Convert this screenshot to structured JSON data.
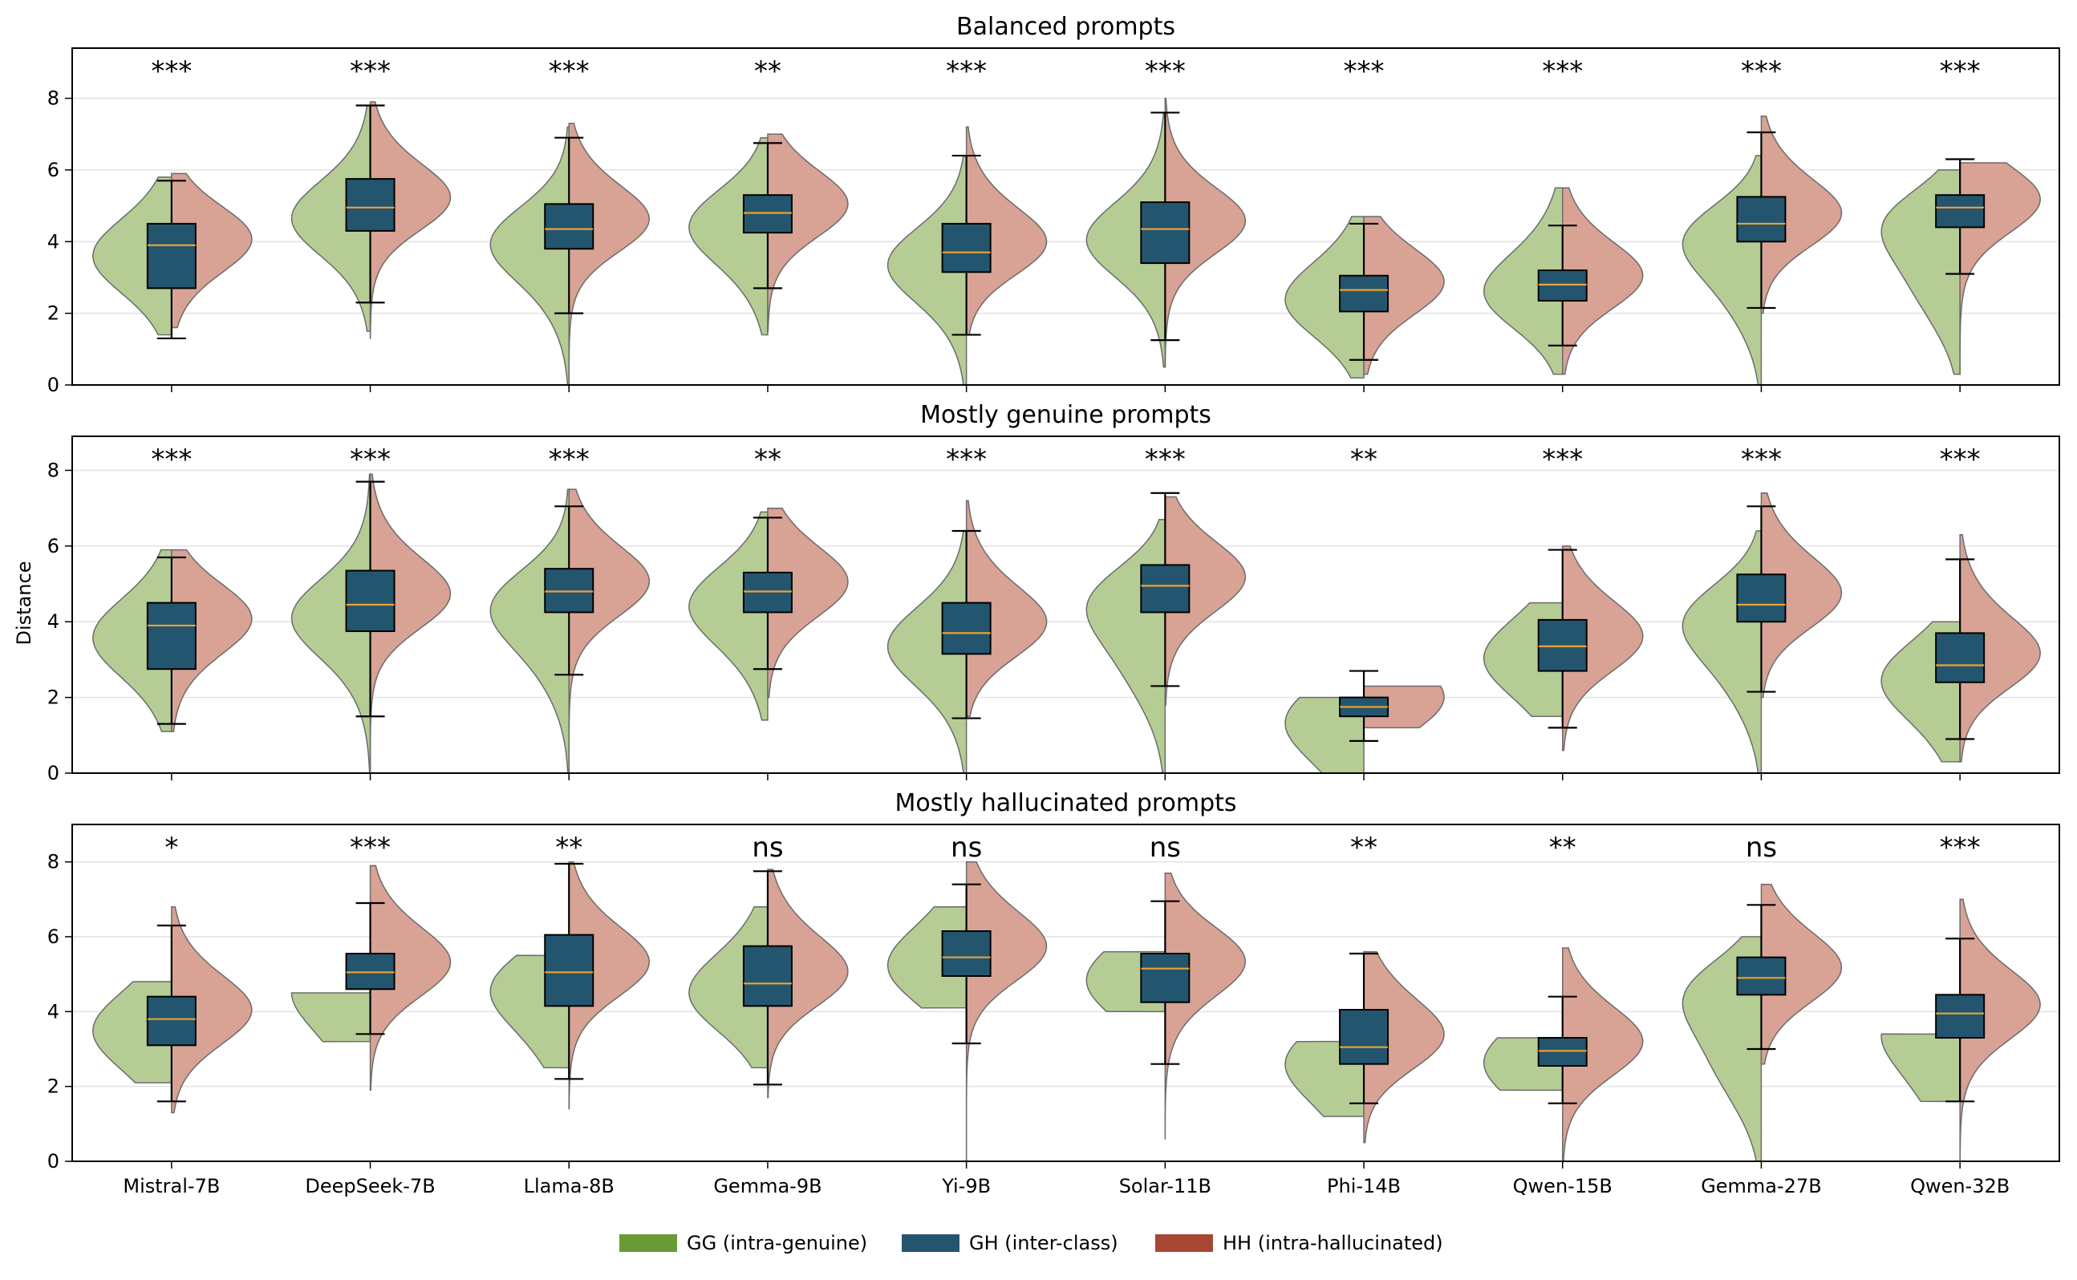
{
  "ylabel": "Distance",
  "colors": {
    "GG": "#b5cd95",
    "GH": "#23566e",
    "HH": "#d8a295",
    "median": "#f0a030"
  },
  "legend": [
    {
      "key": "GG",
      "label": "GG (intra-genuine)",
      "color": "#6a9a35"
    },
    {
      "key": "GH",
      "label": "GH (inter-class)",
      "color": "#23566e"
    },
    {
      "key": "HH",
      "label": "HH (intra-hallucinated)",
      "color": "#a84734"
    }
  ],
  "chart_data": [
    {
      "type": "violin+box",
      "title": "Balanced prompts",
      "ylim": [
        0,
        9.4
      ],
      "yticks": [
        0,
        2,
        4,
        6,
        8
      ],
      "categories": [
        "Mistral-7B",
        "DeepSeek-7B",
        "Llama-8B",
        "Gemma-9B",
        "Yi-9B",
        "Solar-11B",
        "Phi-14B",
        "Qwen-15B",
        "Gemma-27B",
        "Qwen-32B"
      ],
      "significance": [
        "***",
        "***",
        "***",
        "**",
        "***",
        "***",
        "***",
        "***",
        "***",
        "***"
      ],
      "gh_box": [
        {
          "min": 1.3,
          "q1": 2.7,
          "median": 3.9,
          "q3": 4.5,
          "max": 5.7
        },
        {
          "min": 2.3,
          "q1": 4.3,
          "median": 4.95,
          "q3": 5.75,
          "max": 7.8
        },
        {
          "min": 2.0,
          "q1": 3.8,
          "median": 4.35,
          "q3": 5.05,
          "max": 6.9
        },
        {
          "min": 2.7,
          "q1": 4.25,
          "median": 4.8,
          "q3": 5.3,
          "max": 6.75
        },
        {
          "min": 1.4,
          "q1": 3.15,
          "median": 3.7,
          "q3": 4.5,
          "max": 6.4
        },
        {
          "min": 1.25,
          "q1": 3.4,
          "median": 4.35,
          "q3": 5.1,
          "max": 7.6
        },
        {
          "min": 0.7,
          "q1": 2.05,
          "median": 2.65,
          "q3": 3.05,
          "max": 4.5
        },
        {
          "min": 1.1,
          "q1": 2.35,
          "median": 2.8,
          "q3": 3.2,
          "max": 4.45
        },
        {
          "min": 2.15,
          "q1": 4.0,
          "median": 4.5,
          "q3": 5.25,
          "max": 7.05
        },
        {
          "min": 3.1,
          "q1": 4.4,
          "median": 4.95,
          "q3": 5.3,
          "max": 6.3
        }
      ],
      "gg_range": [
        [
          1.4,
          5.8
        ],
        [
          1.5,
          7.8
        ],
        [
          0.0,
          7.2
        ],
        [
          1.4,
          6.9
        ],
        [
          0.0,
          6.4
        ],
        [
          0.5,
          7.6
        ],
        [
          0.2,
          4.7
        ],
        [
          0.3,
          5.5
        ],
        [
          0.0,
          6.4
        ],
        [
          0.3,
          6.0
        ]
      ],
      "hh_range": [
        [
          1.6,
          5.9
        ],
        [
          1.3,
          7.9
        ],
        [
          0.0,
          7.3
        ],
        [
          1.5,
          7.0
        ],
        [
          1.4,
          7.2
        ],
        [
          0.5,
          8.0
        ],
        [
          0.3,
          4.7
        ],
        [
          0.3,
          5.5
        ],
        [
          2.0,
          7.5
        ],
        [
          0.3,
          6.2
        ]
      ]
    },
    {
      "type": "violin+box",
      "title": "Mostly genuine prompts",
      "ylim": [
        0,
        8.9
      ],
      "yticks": [
        0,
        2,
        4,
        6,
        8
      ],
      "categories": [
        "Mistral-7B",
        "DeepSeek-7B",
        "Llama-8B",
        "Gemma-9B",
        "Yi-9B",
        "Solar-11B",
        "Phi-14B",
        "Qwen-15B",
        "Gemma-27B",
        "Qwen-32B"
      ],
      "significance": [
        "***",
        "***",
        "***",
        "**",
        "***",
        "***",
        "**",
        "***",
        "***",
        "***"
      ],
      "gh_box": [
        {
          "min": 1.3,
          "q1": 2.75,
          "median": 3.9,
          "q3": 4.5,
          "max": 5.7
        },
        {
          "min": 1.5,
          "q1": 3.75,
          "median": 4.45,
          "q3": 5.35,
          "max": 7.7
        },
        {
          "min": 2.6,
          "q1": 4.25,
          "median": 4.8,
          "q3": 5.4,
          "max": 7.05
        },
        {
          "min": 2.75,
          "q1": 4.25,
          "median": 4.8,
          "q3": 5.3,
          "max": 6.75
        },
        {
          "min": 1.45,
          "q1": 3.15,
          "median": 3.7,
          "q3": 4.5,
          "max": 6.4
        },
        {
          "min": 2.3,
          "q1": 4.25,
          "median": 4.95,
          "q3": 5.5,
          "max": 7.4
        },
        {
          "min": 0.85,
          "q1": 1.5,
          "median": 1.75,
          "q3": 2.0,
          "max": 2.7
        },
        {
          "min": 1.2,
          "q1": 2.7,
          "median": 3.35,
          "q3": 4.05,
          "max": 5.9
        },
        {
          "min": 2.15,
          "q1": 4.0,
          "median": 4.45,
          "q3": 5.25,
          "max": 7.05
        },
        {
          "min": 0.9,
          "q1": 2.4,
          "median": 2.85,
          "q3": 3.7,
          "max": 5.65
        }
      ],
      "gg_range": [
        [
          1.1,
          5.9
        ],
        [
          0.0,
          7.9
        ],
        [
          0.0,
          7.5
        ],
        [
          1.4,
          6.9
        ],
        [
          0.0,
          6.4
        ],
        [
          0.0,
          6.7
        ],
        [
          0.0,
          2.0
        ],
        [
          1.5,
          4.5
        ],
        [
          0.0,
          6.4
        ],
        [
          0.3,
          4.0
        ]
      ],
      "hh_range": [
        [
          1.1,
          5.9
        ],
        [
          0.0,
          7.9
        ],
        [
          0.0,
          7.5
        ],
        [
          2.0,
          7.0
        ],
        [
          1.5,
          7.2
        ],
        [
          1.8,
          7.3
        ],
        [
          1.2,
          2.3
        ],
        [
          0.6,
          6.0
        ],
        [
          2.0,
          7.4
        ],
        [
          0.3,
          6.3
        ]
      ]
    },
    {
      "type": "violin+box",
      "title": "Mostly hallucinated prompts",
      "ylim": [
        0,
        9.0
      ],
      "yticks": [
        0,
        2,
        4,
        6,
        8
      ],
      "categories": [
        "Mistral-7B",
        "DeepSeek-7B",
        "Llama-8B",
        "Gemma-9B",
        "Yi-9B",
        "Solar-11B",
        "Phi-14B",
        "Qwen-15B",
        "Gemma-27B",
        "Qwen-32B"
      ],
      "significance": [
        "*",
        "***",
        "**",
        "ns",
        "ns",
        "ns",
        "**",
        "**",
        "ns",
        "***"
      ],
      "gh_box": [
        {
          "min": 1.6,
          "q1": 3.1,
          "median": 3.8,
          "q3": 4.4,
          "max": 6.3
        },
        {
          "min": 3.4,
          "q1": 4.6,
          "median": 5.05,
          "q3": 5.55,
          "max": 6.9
        },
        {
          "min": 2.2,
          "q1": 4.15,
          "median": 5.05,
          "q3": 6.05,
          "max": 7.95
        },
        {
          "min": 2.05,
          "q1": 4.15,
          "median": 4.75,
          "q3": 5.75,
          "max": 7.75
        },
        {
          "min": 3.15,
          "q1": 4.95,
          "median": 5.45,
          "q3": 6.15,
          "max": 7.4
        },
        {
          "min": 2.6,
          "q1": 4.25,
          "median": 5.15,
          "q3": 5.55,
          "max": 6.95
        },
        {
          "min": 1.55,
          "q1": 2.6,
          "median": 3.05,
          "q3": 4.05,
          "max": 5.55
        },
        {
          "min": 1.55,
          "q1": 2.55,
          "median": 2.95,
          "q3": 3.3,
          "max": 4.4
        },
        {
          "min": 3.0,
          "q1": 4.45,
          "median": 4.9,
          "q3": 5.45,
          "max": 6.85
        },
        {
          "min": 1.6,
          "q1": 3.3,
          "median": 3.95,
          "q3": 4.45,
          "max": 5.95
        }
      ],
      "gg_range": [
        [
          2.1,
          4.8
        ],
        [
          3.2,
          4.5
        ],
        [
          2.5,
          5.5
        ],
        [
          2.5,
          6.8
        ],
        [
          4.1,
          6.8
        ],
        [
          4.0,
          5.6
        ],
        [
          1.2,
          3.2
        ],
        [
          1.9,
          3.3
        ],
        [
          0.0,
          6.0
        ],
        [
          1.6,
          3.4
        ]
      ],
      "hh_range": [
        [
          1.3,
          6.8
        ],
        [
          1.9,
          7.9
        ],
        [
          1.4,
          8.0
        ],
        [
          1.7,
          7.8
        ],
        [
          0.0,
          8.0
        ],
        [
          0.6,
          7.7
        ],
        [
          0.5,
          5.6
        ],
        [
          0.0,
          5.7
        ],
        [
          2.6,
          7.4
        ],
        [
          0.0,
          7.0
        ]
      ]
    }
  ]
}
